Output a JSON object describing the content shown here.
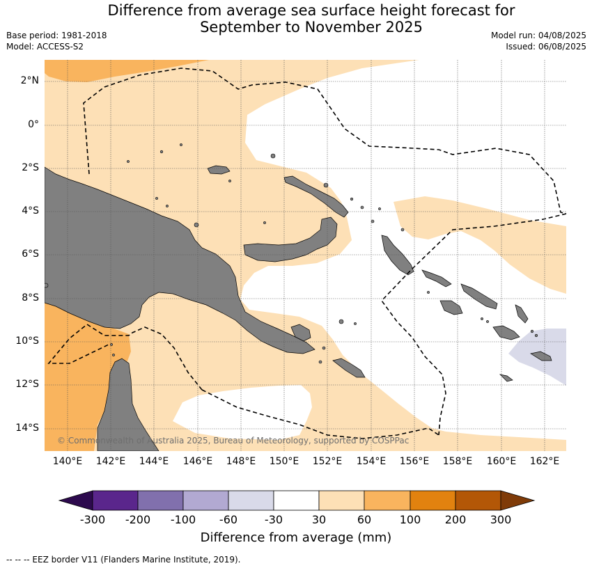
{
  "title_line1": "Difference from average sea surface height forecast for",
  "title_line2": "September to November 2025",
  "base_period": "Base period: 1981-2018",
  "model": "Model: ACCESS-S2",
  "model_run": "Model run: 04/08/2025",
  "issued": "Issued: 06/08/2025",
  "lat_labels": [
    "2°N",
    "0°",
    "2°S",
    "4°S",
    "6°S",
    "8°S",
    "10°S",
    "12°S",
    "14°S"
  ],
  "lon_labels": [
    "140°E",
    "142°E",
    "144°E",
    "146°E",
    "148°E",
    "150°E",
    "152°E",
    "154°E",
    "156°E",
    "158°E",
    "160°E",
    "162°E"
  ],
  "copyright": "© Commonwealth of Australia 2025, Bureau of Meteorology, supported by COSPPac",
  "colorbar": {
    "ticks": [
      "-300",
      "-200",
      "-100",
      "-60",
      "-30",
      "30",
      "60",
      "100",
      "200",
      "300"
    ],
    "title": "Difference from average (mm)",
    "colors": {
      "below_-300": "#2d0a4e",
      "-300_-200": "#5a268c",
      "-200_-100": "#8170ad",
      "-100_-60": "#b2a9d2",
      "-60_-30": "#d9dae9",
      "-30_30": "#ffffff",
      "30_60": "#fde0b6",
      "60_100": "#f9b45e",
      "100_200": "#e2820f",
      "200_300": "#b35707",
      "above_300": "#7f3b08"
    }
  },
  "land_color": "#808080",
  "footer": "--  --  -- EEZ border V11 (Flanders Marine Institute, 2019)."
}
